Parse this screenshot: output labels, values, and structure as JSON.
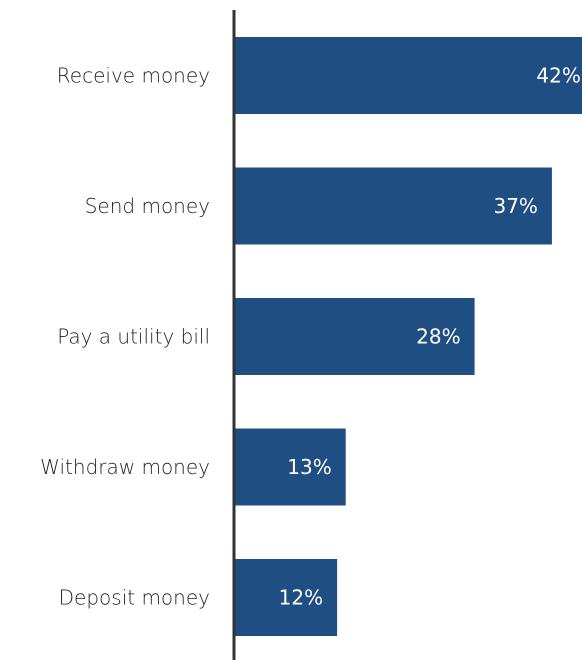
{
  "chart_data": {
    "type": "bar",
    "orientation": "horizontal",
    "categories": [
      "Receive money",
      "Send money",
      "Pay a utility bill",
      "Withdraw money",
      "Deposit money"
    ],
    "values": [
      42,
      37,
      28,
      13,
      12
    ],
    "value_labels": [
      "42%",
      "37%",
      "28%",
      "13%",
      "12%"
    ],
    "bar_color": "#1f4e82",
    "axis_color": "#333333",
    "xlim": [
      0,
      40.5
    ],
    "grid": false,
    "legend": "none",
    "title": "",
    "xlabel": "",
    "ylabel": ""
  }
}
